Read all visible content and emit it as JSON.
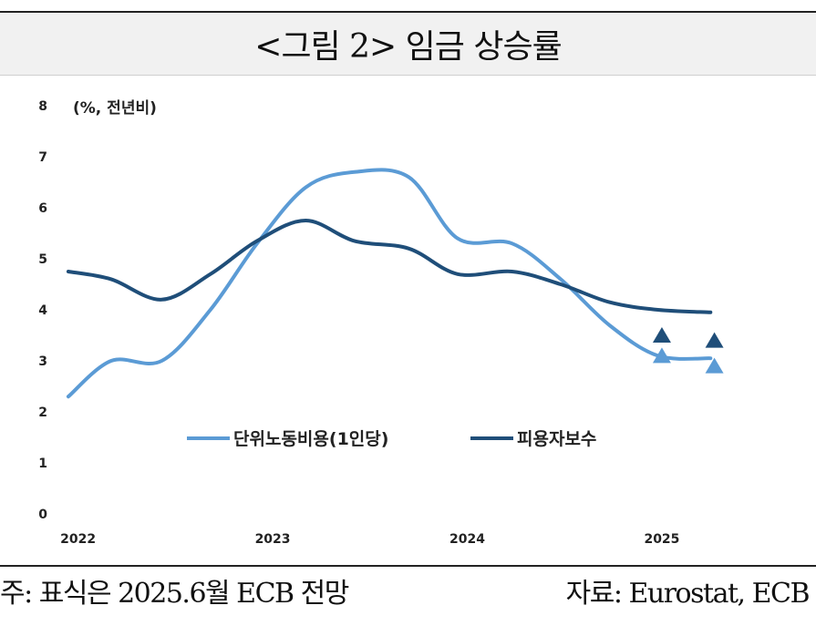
{
  "title": "<그림 2> 임금 상승률",
  "note": "주: 표식은 2025.6월 ECB 전망",
  "source": "자료: Eurostat, ECB",
  "chart_data": {
    "type": "line",
    "unit_label": "(%, 전년비)",
    "ylim": [
      0,
      8
    ],
    "y_ticks": [
      "0",
      "1",
      "2",
      "3",
      "4",
      "5",
      "6",
      "7",
      "8"
    ],
    "x_ticks": [
      "2022",
      "2023",
      "2024",
      "2025"
    ],
    "x_tick_values": [
      2022,
      2023,
      2024,
      2025
    ],
    "xlim": [
      2021.88,
      2025.45
    ],
    "grid": false,
    "legend_position": "center",
    "series": [
      {
        "name": "단위노동비용(1인당)",
        "color": "#5b9bd5",
        "x": [
          2021.95,
          2022.17,
          2022.43,
          2022.68,
          2022.92,
          2023.17,
          2023.42,
          2023.7,
          2023.95,
          2024.23,
          2024.48,
          2024.73,
          2024.98,
          2025.25
        ],
        "y": [
          2.3,
          3.0,
          3.0,
          4.0,
          5.3,
          6.4,
          6.7,
          6.6,
          5.4,
          5.3,
          4.6,
          3.7,
          3.1,
          3.05
        ]
      },
      {
        "name": "피용자보수",
        "color": "#1f4e79",
        "x": [
          2021.95,
          2022.17,
          2022.43,
          2022.68,
          2022.92,
          2023.17,
          2023.42,
          2023.7,
          2023.95,
          2024.23,
          2024.48,
          2024.73,
          2024.98,
          2025.25
        ],
        "y": [
          4.75,
          4.6,
          4.2,
          4.7,
          5.35,
          5.75,
          5.35,
          5.2,
          4.7,
          4.75,
          4.5,
          4.15,
          4.0,
          3.95
        ]
      }
    ],
    "projections": [
      {
        "series": "단위노동비용(1인당)",
        "color": "#5b9bd5",
        "x": [
          2025.0,
          2025.27
        ],
        "y": [
          3.1,
          2.9
        ]
      },
      {
        "series": "피용자보수",
        "color": "#1f4e79",
        "x": [
          2025.0,
          2025.27
        ],
        "y": [
          3.5,
          3.4
        ]
      }
    ]
  }
}
